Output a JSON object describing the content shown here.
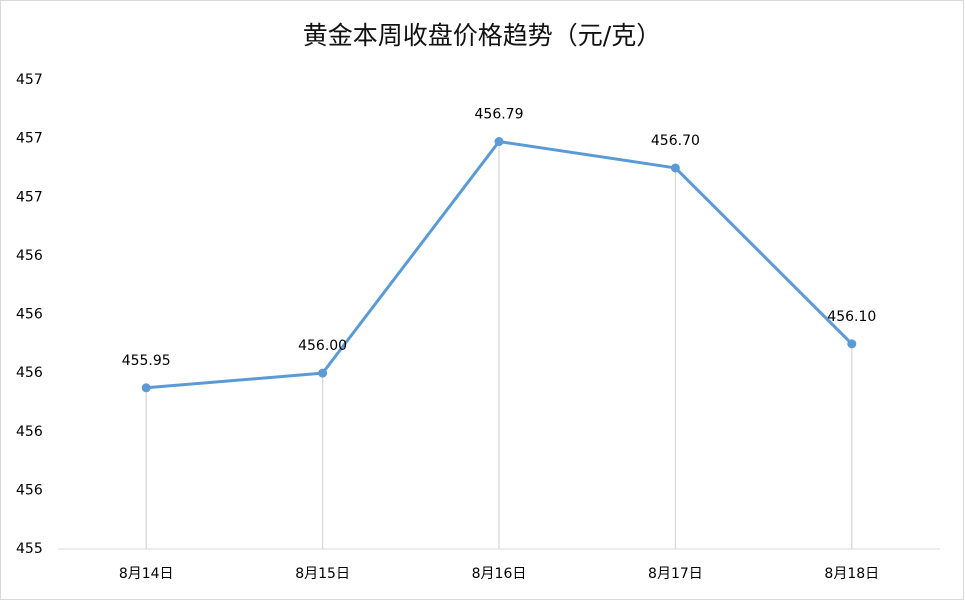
{
  "chart_data": {
    "type": "line",
    "title": "黄金本周收盘价格趋势（元/克）",
    "categories": [
      "8月14日",
      "8月15日",
      "8月16日",
      "8月17日",
      "8月18日"
    ],
    "series": [
      {
        "color": "#5b9bd5",
        "values": [
          455.95,
          456.0,
          456.79,
          456.7,
          456.1
        ],
        "value_labels": [
          "455.95",
          "456.00",
          "456.79",
          "456.70",
          "456.10"
        ]
      }
    ],
    "ylim": [
      455.4,
      457.0
    ],
    "yticks": [
      {
        "value": 455.4,
        "label": "455"
      },
      {
        "value": 455.6,
        "label": "456"
      },
      {
        "value": 455.8,
        "label": "456"
      },
      {
        "value": 456.0,
        "label": "456"
      },
      {
        "value": 456.2,
        "label": "456"
      },
      {
        "value": 456.4,
        "label": "456"
      },
      {
        "value": 456.6,
        "label": "457"
      },
      {
        "value": 456.8,
        "label": "457"
      },
      {
        "value": 457.0,
        "label": "457"
      }
    ],
    "drop_lines": true
  }
}
